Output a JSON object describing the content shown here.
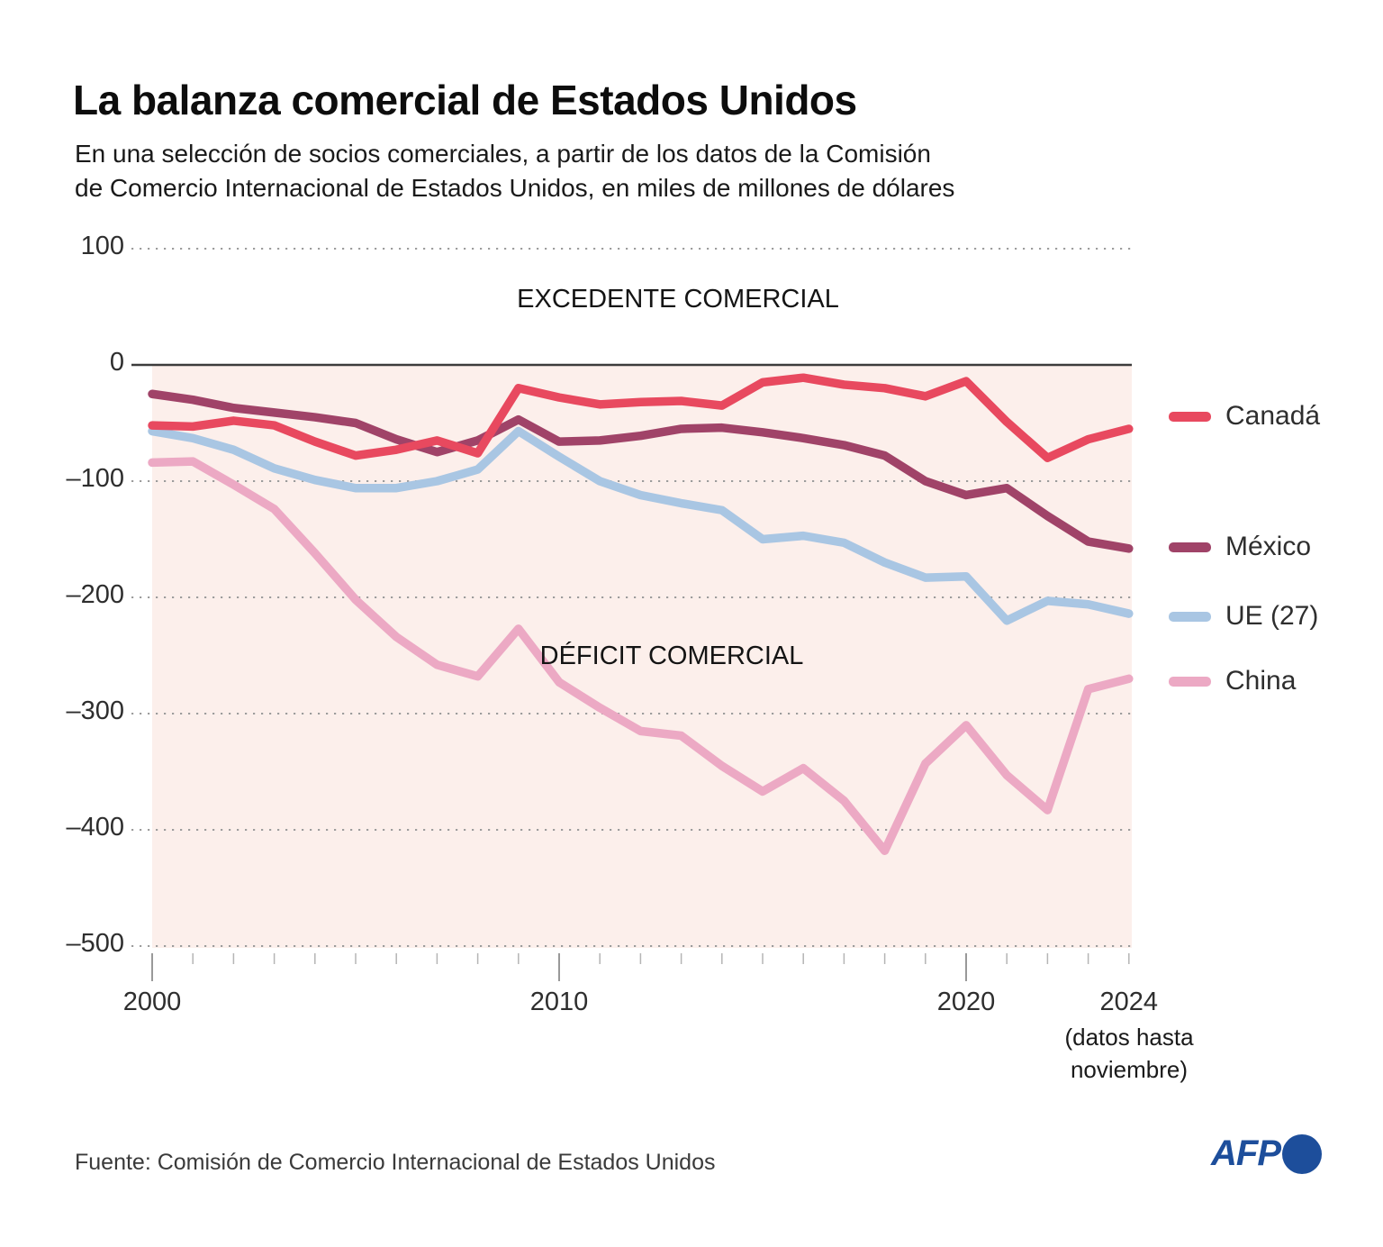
{
  "header": {
    "title": "La balanza comercial de Estados Unidos",
    "subtitle_line1": "En una selección de socios comerciales, a partir de los datos de la Comisión",
    "subtitle_line2": "de Comercio Internacional de Estados Unidos, en miles de millones de dólares"
  },
  "chart_data": {
    "type": "line",
    "title": "La balanza comercial de Estados Unidos",
    "units": "miles de millones de dólares",
    "grid": "horizontal dotted",
    "legend_position": "right",
    "ylim": [
      -500,
      100
    ],
    "y_ticks": [
      100,
      0,
      -100,
      -200,
      -300,
      -400,
      -500
    ],
    "y_tick_labels": [
      "100",
      "0",
      "–100",
      "–200",
      "–300",
      "–400",
      "–500"
    ],
    "x_tick_years": [
      2000,
      2010,
      2020,
      2024
    ],
    "x_tick_labels": [
      "2000",
      "2010",
      "2020",
      "2024"
    ],
    "x_note_line1": "(datos hasta",
    "x_note_line2": "noviembre)",
    "annotations": {
      "surplus": "EXCEDENTE COMERCIAL",
      "deficit": "DÉFICIT COMERCIAL"
    },
    "plot_background_color": "#fcefeb",
    "x": [
      2000,
      2001,
      2002,
      2003,
      2004,
      2005,
      2006,
      2007,
      2008,
      2009,
      2010,
      2011,
      2012,
      2013,
      2014,
      2015,
      2016,
      2017,
      2018,
      2019,
      2020,
      2021,
      2022,
      2023,
      2024
    ],
    "series": [
      {
        "name": "Canadá",
        "color": "#e8495f",
        "values": [
          -52,
          -53,
          -48,
          -52,
          -66,
          -78,
          -73,
          -65,
          -76,
          -20,
          -28,
          -34,
          -32,
          -31,
          -35,
          -15,
          -11,
          -17,
          -20,
          -27,
          -14,
          -49,
          -80,
          -64,
          -55
        ]
      },
      {
        "name": "México",
        "color": "#a04368",
        "values": [
          -25,
          -30,
          -37,
          -41,
          -45,
          -50,
          -64,
          -75,
          -65,
          -47,
          -66,
          -65,
          -61,
          -55,
          -54,
          -58,
          -63,
          -69,
          -78,
          -100,
          -112,
          -106,
          -130,
          -152,
          -158
        ]
      },
      {
        "name": "UE (27)",
        "color": "#a9c6e3",
        "values": [
          -57,
          -63,
          -73,
          -89,
          -99,
          -106,
          -106,
          -100,
          -90,
          -57,
          -79,
          -100,
          -112,
          -119,
          -125,
          -150,
          -147,
          -153,
          -170,
          -183,
          -182,
          -220,
          -203,
          -206,
          -214
        ]
      },
      {
        "name": "China",
        "color": "#eca9c4",
        "values": [
          -84,
          -83,
          -103,
          -124,
          -162,
          -202,
          -234,
          -258,
          -268,
          -227,
          -273,
          -295,
          -315,
          -319,
          -345,
          -367,
          -347,
          -375,
          -418,
          -343,
          -310,
          -353,
          -383,
          -279,
          -270
        ]
      }
    ]
  },
  "footer": {
    "source": "Fuente: Comisión de Comercio Internacional de Estados Unidos",
    "logo_text": "AFP",
    "logo_color": "#1d4e9b"
  }
}
